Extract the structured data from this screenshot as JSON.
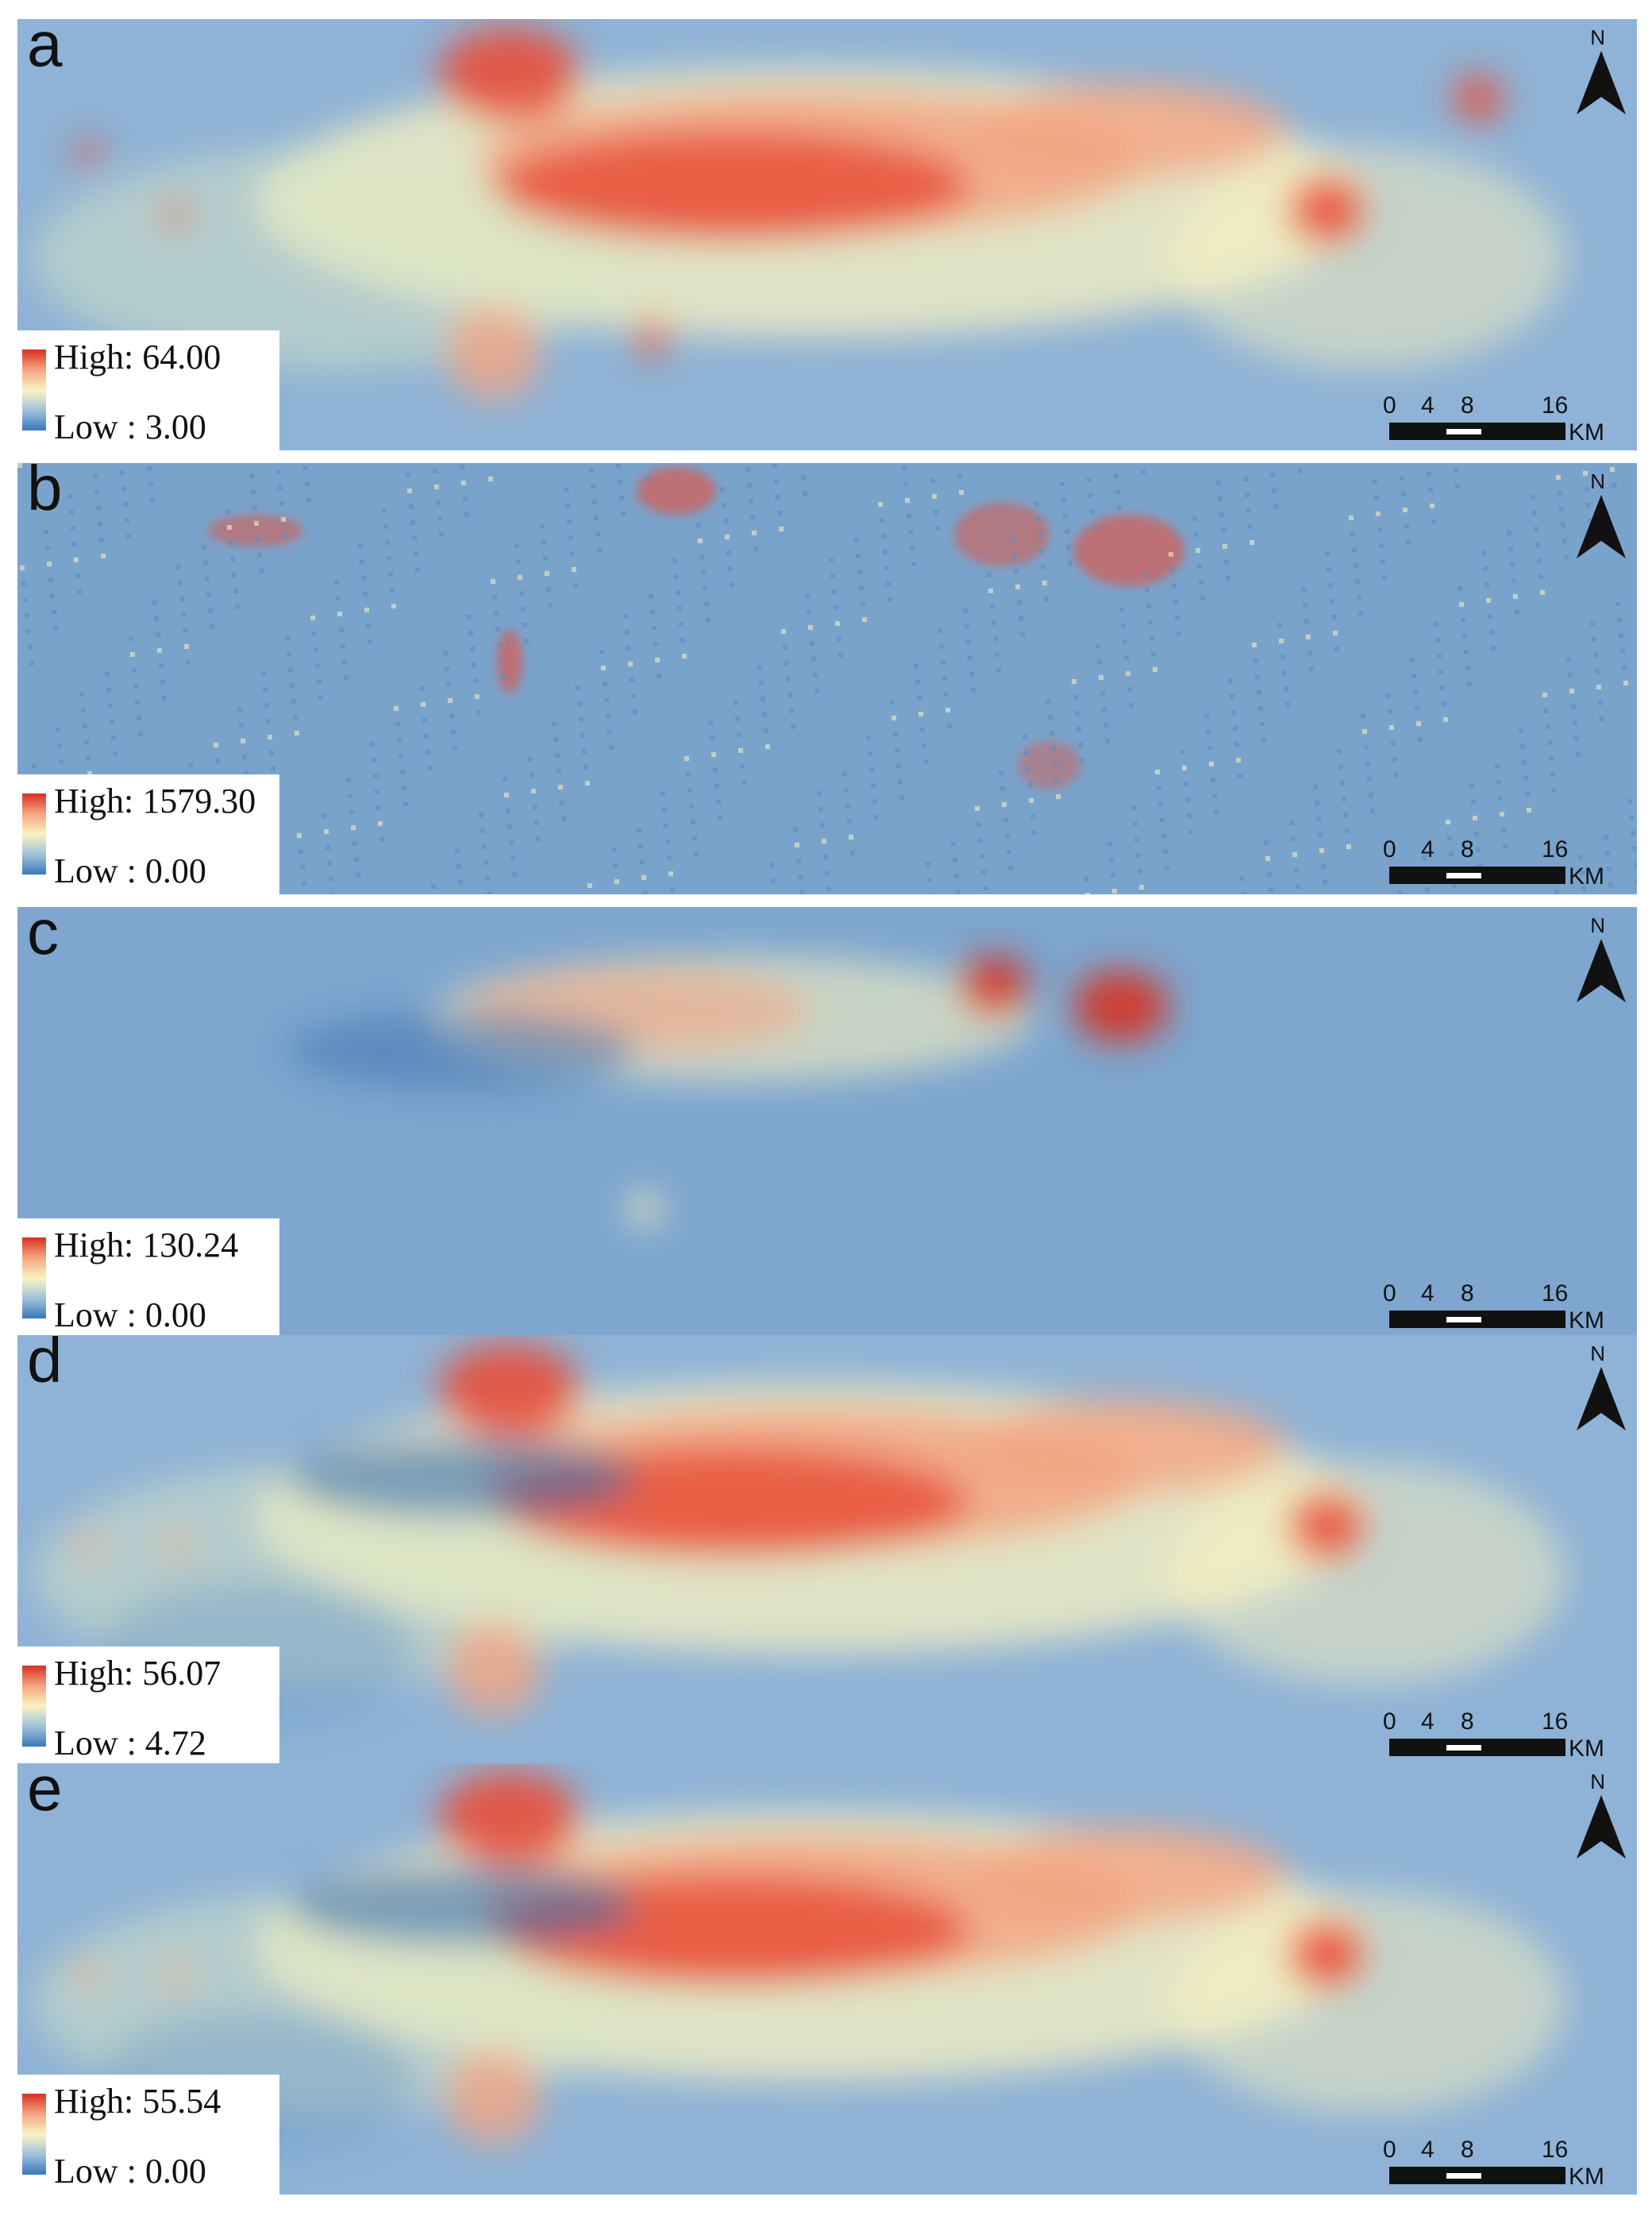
{
  "colors": {
    "high": "#d7301f",
    "mid": "#fbf3c0",
    "low": "#3b78b8"
  },
  "north_label": "N",
  "scale": {
    "ticks": [
      "0",
      "4",
      "8",
      "16"
    ],
    "unit": "KM"
  },
  "panels": [
    {
      "letter": "a",
      "legend_high": "High: 64.00",
      "legend_low": "Low : 3.00"
    },
    {
      "letter": "b",
      "legend_high": "High: 1579.30",
      "legend_low": "Low : 0.00"
    },
    {
      "letter": "c",
      "legend_high": "High: 130.24",
      "legend_low": "Low : 0.00"
    },
    {
      "letter": "d",
      "legend_high": "High: 56.07",
      "legend_low": "Low : 4.72"
    },
    {
      "letter": "e",
      "legend_high": "High: 55.54",
      "legend_low": "Low : 0.00"
    }
  ]
}
